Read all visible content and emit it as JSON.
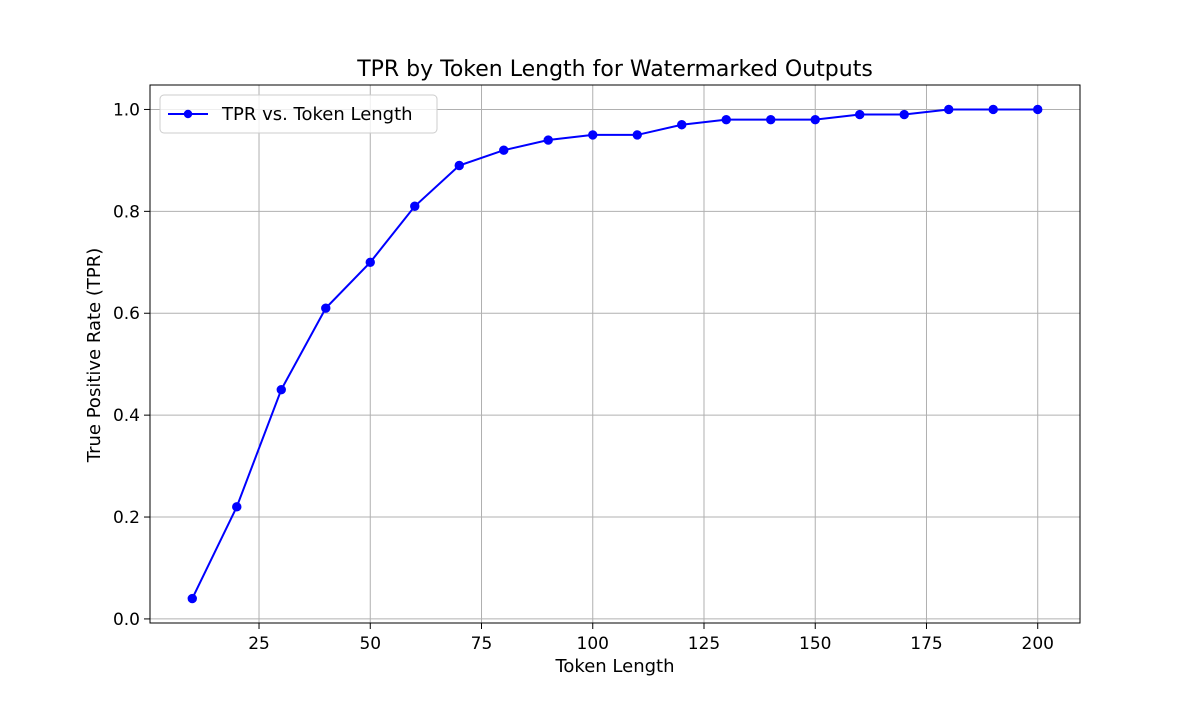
{
  "chart_data": {
    "type": "line",
    "title": "TPR by Token Length for Watermarked Outputs",
    "xlabel": "Token Length",
    "ylabel": "True Positive Rate (TPR)",
    "xlim": [
      0.5,
      209.5
    ],
    "ylim": [
      -0.008,
      1.048
    ],
    "x_ticks": [
      25,
      50,
      75,
      100,
      125,
      150,
      175,
      200
    ],
    "y_ticks": [
      0.0,
      0.2,
      0.4,
      0.6,
      0.8,
      1.0
    ],
    "x_tick_labels": [
      "25",
      "50",
      "75",
      "100",
      "125",
      "150",
      "175",
      "200"
    ],
    "y_tick_labels": [
      "0.0",
      "0.2",
      "0.4",
      "0.6",
      "0.8",
      "1.0"
    ],
    "grid": true,
    "legend_position": "top-left",
    "series": [
      {
        "name": "TPR vs. Token Length",
        "color": "#0000ff",
        "marker": "circle",
        "x": [
          10,
          20,
          30,
          40,
          50,
          60,
          70,
          80,
          90,
          100,
          110,
          120,
          130,
          140,
          150,
          160,
          170,
          180,
          190,
          200
        ],
        "y": [
          0.04,
          0.22,
          0.45,
          0.61,
          0.7,
          0.81,
          0.89,
          0.92,
          0.94,
          0.95,
          0.95,
          0.97,
          0.98,
          0.98,
          0.98,
          0.99,
          0.99,
          1.0,
          1.0,
          1.0
        ]
      }
    ]
  }
}
